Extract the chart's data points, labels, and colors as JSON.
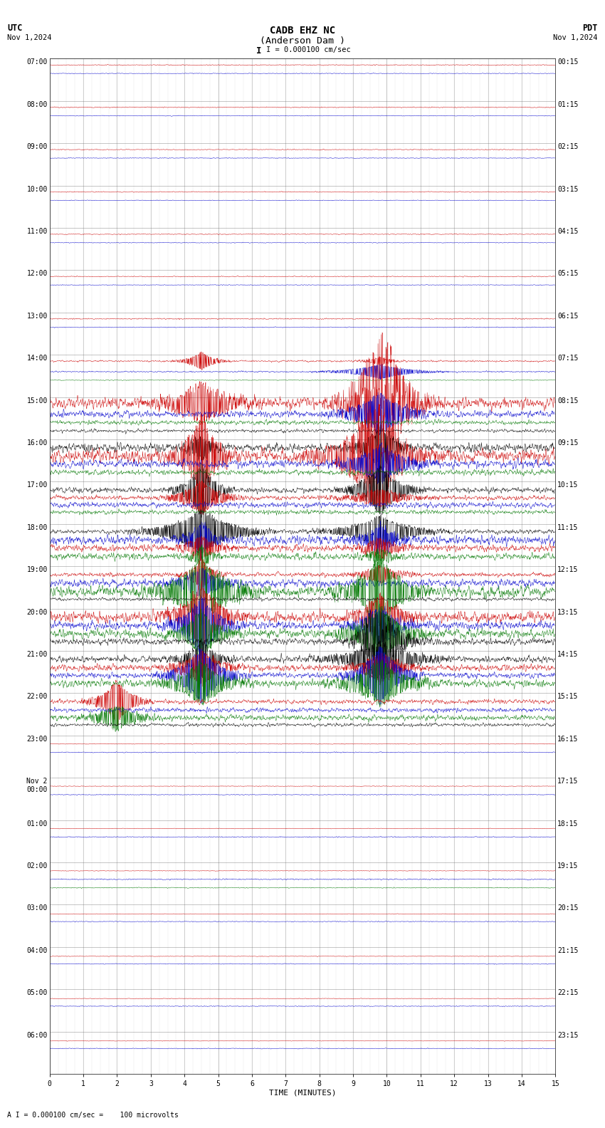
{
  "title_line1": "CADB EHZ NC",
  "title_line2": "(Anderson Dam )",
  "scale_text": "I = 0.000100 cm/sec",
  "utc_label": "UTC",
  "utc_date": "Nov 1,2024",
  "pdt_label": "PDT",
  "pdt_date": "Nov 1,2024",
  "bottom_label": "A I = 0.000100 cm/sec =    100 microvolts",
  "xlabel": "TIME (MINUTES)",
  "x_ticks": [
    0,
    1,
    2,
    3,
    4,
    5,
    6,
    7,
    8,
    9,
    10,
    11,
    12,
    13,
    14,
    15
  ],
  "left_times": [
    "07:00",
    "08:00",
    "09:00",
    "10:00",
    "11:00",
    "12:00",
    "13:00",
    "14:00",
    "15:00",
    "16:00",
    "17:00",
    "18:00",
    "19:00",
    "20:00",
    "21:00",
    "22:00",
    "23:00",
    "Nov 2\n00:00",
    "01:00",
    "02:00",
    "03:00",
    "04:00",
    "05:00",
    "06:00"
  ],
  "right_times": [
    "00:15",
    "01:15",
    "02:15",
    "03:15",
    "04:15",
    "05:15",
    "06:15",
    "07:15",
    "08:15",
    "09:15",
    "10:15",
    "11:15",
    "12:15",
    "13:15",
    "14:15",
    "15:15",
    "16:15",
    "17:15",
    "18:15",
    "19:15",
    "20:15",
    "21:15",
    "22:15",
    "23:15"
  ],
  "n_rows": 24,
  "n_samples": 1800,
  "bg_color": "#ffffff",
  "grid_color": "#777777",
  "colors": {
    "red": "#cc0000",
    "blue": "#0000cc",
    "green": "#007700",
    "black": "#000000"
  },
  "title_fontsize": 10,
  "label_fontsize": 8,
  "tick_fontsize": 7
}
